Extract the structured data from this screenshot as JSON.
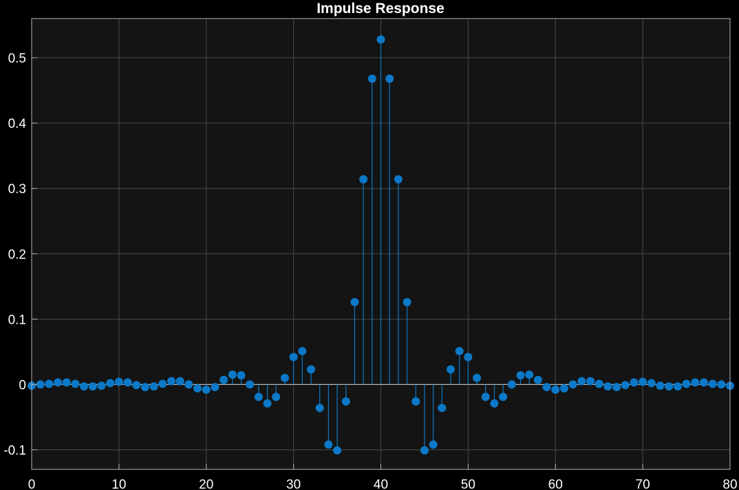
{
  "chart_data": {
    "type": "stem",
    "title": "Impulse Response",
    "xlabel": "",
    "ylabel": "",
    "xlim": [
      0,
      80
    ],
    "ylim": [
      -0.13,
      0.56
    ],
    "xticks": [
      "0",
      "10",
      "20",
      "30",
      "40",
      "50",
      "60",
      "70",
      "80"
    ],
    "yticks": [
      "-0.1",
      "0",
      "0.1",
      "0.2",
      "0.3",
      "0.4",
      "0.5"
    ],
    "grid": true,
    "background": "#141414",
    "series_color": "#0c78c8",
    "x": [
      0,
      1,
      2,
      3,
      4,
      5,
      6,
      7,
      8,
      9,
      10,
      11,
      12,
      13,
      14,
      15,
      16,
      17,
      18,
      19,
      20,
      21,
      22,
      23,
      24,
      25,
      26,
      27,
      28,
      29,
      30,
      31,
      32,
      33,
      34,
      35,
      36,
      37,
      38,
      39,
      40,
      41,
      42,
      43,
      44,
      45,
      46,
      47,
      48,
      49,
      50,
      51,
      52,
      53,
      54,
      55,
      56,
      57,
      58,
      59,
      60,
      61,
      62,
      63,
      64,
      65,
      66,
      67,
      68,
      69,
      70,
      71,
      72,
      73,
      74,
      75,
      76,
      77,
      78,
      79,
      80
    ],
    "values": [
      -0.002,
      0.0,
      0.001,
      0.003,
      0.003,
      0.001,
      -0.003,
      -0.003,
      -0.002,
      0.002,
      0.004,
      0.003,
      -0.001,
      -0.004,
      -0.003,
      0.001,
      0.005,
      0.005,
      0.0,
      -0.006,
      -0.008,
      -0.004,
      0.007,
      0.015,
      0.014,
      0.0,
      -0.019,
      -0.029,
      -0.019,
      0.01,
      0.042,
      0.051,
      0.023,
      -0.036,
      -0.092,
      -0.101,
      -0.026,
      0.126,
      0.314,
      0.468,
      0.528,
      0.468,
      0.314,
      0.126,
      -0.026,
      -0.101,
      -0.092,
      -0.036,
      0.023,
      0.051,
      0.042,
      0.01,
      -0.019,
      -0.029,
      -0.019,
      0.0,
      0.014,
      0.015,
      0.007,
      -0.004,
      -0.008,
      -0.006,
      0.0,
      0.005,
      0.005,
      0.001,
      -0.003,
      -0.004,
      -0.001,
      0.003,
      0.004,
      0.002,
      -0.002,
      -0.003,
      -0.003,
      0.001,
      0.003,
      0.003,
      0.001,
      0.0,
      -0.002
    ]
  }
}
